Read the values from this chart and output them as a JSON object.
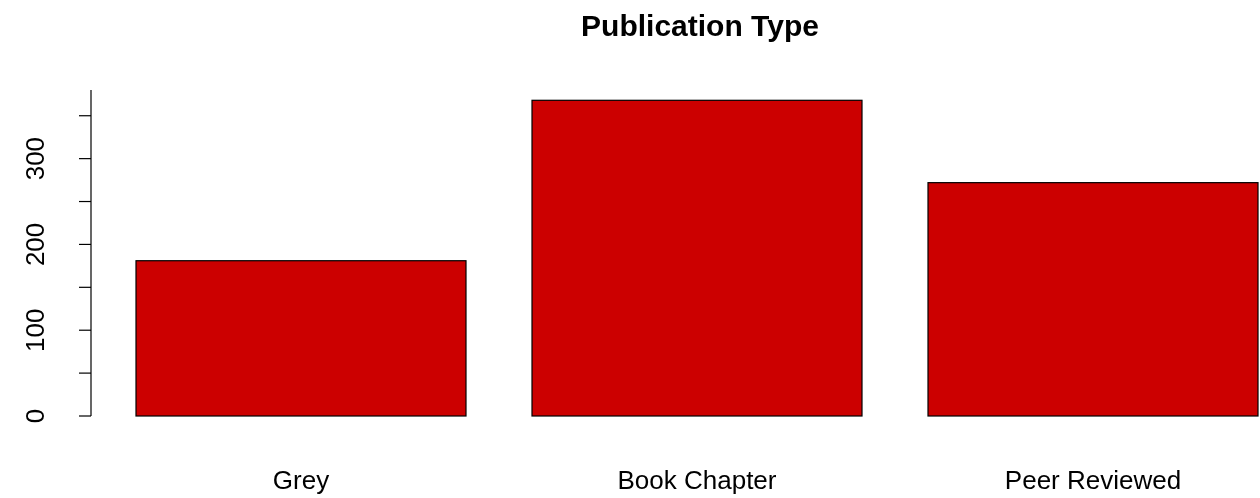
{
  "chart_data": {
    "type": "bar",
    "title": "Publication Type",
    "categories": [
      "Grey",
      "Book Chapter",
      "Peer Reviewed"
    ],
    "values": [
      181,
      368,
      272
    ],
    "color": "#cc0000",
    "ylim": [
      0,
      380
    ],
    "yticks": [
      0,
      {
        "value": 50,
        "label": null
      },
      100,
      {
        "value": 150,
        "label": null
      },
      200,
      {
        "value": 250,
        "label": null
      },
      300,
      {
        "value": 350,
        "label": null
      }
    ],
    "grid": false
  }
}
